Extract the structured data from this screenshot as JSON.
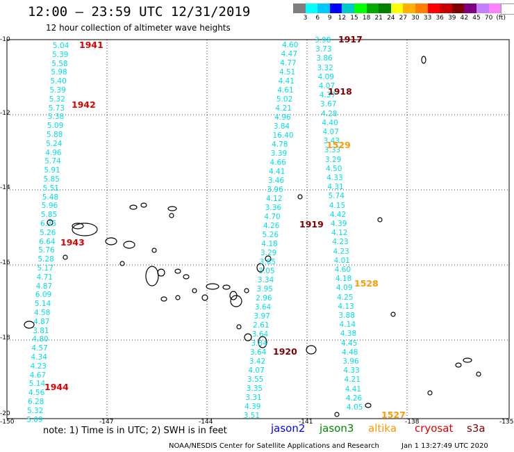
{
  "header": {
    "title": "12:00 – 23:59 UTC 12/31/2019",
    "subtitle": "12 hour collection of altimeter wave heights"
  },
  "scale": {
    "colors": [
      "#7f7f7f",
      "#00ffff",
      "#00c8ff",
      "#0000ff",
      "#00c8c8",
      "#00ff00",
      "#00aa00",
      "#008000",
      "#ffff00",
      "#ffb000",
      "#ff8000",
      "#ff0000",
      "#c80000",
      "#800000",
      "#7f007f",
      "#c080ff",
      "#ff80ff",
      "#ffffff"
    ],
    "ticks": [
      "3",
      "6",
      "9",
      "12",
      "15",
      "18",
      "21",
      "24",
      "27",
      "30",
      "33",
      "36",
      "39",
      "42",
      "45",
      "70",
      "(ft)"
    ]
  },
  "axes": {
    "y_labels": [
      "-10",
      "-12",
      "-14",
      "-16",
      "-18",
      "-20"
    ],
    "x_labels": [
      "-150",
      "-147",
      "-144",
      "-141",
      "-138",
      "-135"
    ]
  },
  "track_labels": {
    "t1941": "1941",
    "t1942": "1942",
    "t1943": "1943",
    "t1944": "1944",
    "t1917": "1917",
    "t1918": "1918",
    "t1919": "1919",
    "t1920": "1920",
    "t1529": "1529",
    "t1528": "1528",
    "t1527": "1527"
  },
  "track_colors": {
    "dark_red": "#800000",
    "red": "#e00000",
    "orange": "#ff9900",
    "value": "#00e0e0"
  },
  "tracks": {
    "left": [
      "5.04",
      "5.39",
      "5.58",
      "5.98",
      "5.40",
      "5.39",
      "5.32",
      "5.73",
      "5.38",
      "5.09",
      "5.88",
      "5.24",
      "4.96",
      "5.74",
      "5.91",
      "5.85",
      "5.51",
      "5.48",
      "5.96",
      "5.85",
      "6.35",
      "5.26",
      "6.64",
      "5.76",
      "5.28",
      "5.17",
      "4.71",
      "4.87",
      "6.09",
      "5.14",
      "4.58",
      "4.87",
      "3.81",
      "4.80",
      "4.57",
      "4.34",
      "4.23",
      "4.67",
      "5.14",
      "4.56",
      "6.28",
      "5.32",
      "5.09"
    ],
    "mid": [
      "4.60",
      "4.47",
      "4.77",
      "4.51",
      "4.41",
      "4.61",
      "5.02",
      "4.21",
      "4.96",
      "3.84",
      "16.40",
      "4.78",
      "3.39",
      "4.66",
      "4.41",
      "3.46",
      "3.96",
      "4.12",
      "3.36",
      "4.70",
      "4.26",
      "5.26",
      "4.18",
      "3.29",
      "3.65",
      "3.05",
      "3.34",
      "3.95",
      "2.96",
      "3.64",
      "3.97",
      "2.61",
      "3.64",
      "3.84",
      "3.64",
      "3.42",
      "4.07",
      "3.55",
      "3.35",
      "3.31",
      "4.39",
      "3.51"
    ],
    "right": [
      "3.98",
      "3.73",
      "3.86",
      "3.32",
      "4.09",
      "4.07",
      "4.37",
      "3.67",
      "4.28",
      "4.40",
      "4.07",
      "3.43",
      "3.33",
      "3.29",
      "4.50",
      "4.33",
      "4.31",
      "5.74",
      "4.15",
      "4.42",
      "4.39",
      "4.12",
      "4.23",
      "4.23",
      "4.01",
      "4.60",
      "4.18",
      "4.09",
      "4.25",
      "4.13",
      "3.88",
      "4.14",
      "4.38",
      "4.45",
      "4.48",
      "3.96",
      "4.33",
      "4.21",
      "4.41",
      "4.26",
      "4.05"
    ]
  },
  "footer": {
    "note": "note:  1) Time is in UTC; 2) SWH is in feet",
    "sat_jason2": "jason2",
    "sat_jason3": "jason3",
    "sat_altika": "altika",
    "sat_cryosat": "cryosat",
    "sat_s3a": "s3a",
    "credit": "NOAA/NESDIS Center for Satellite Applications and Research",
    "stamp": "Jan  1 13:27:49 UTC 2020"
  }
}
